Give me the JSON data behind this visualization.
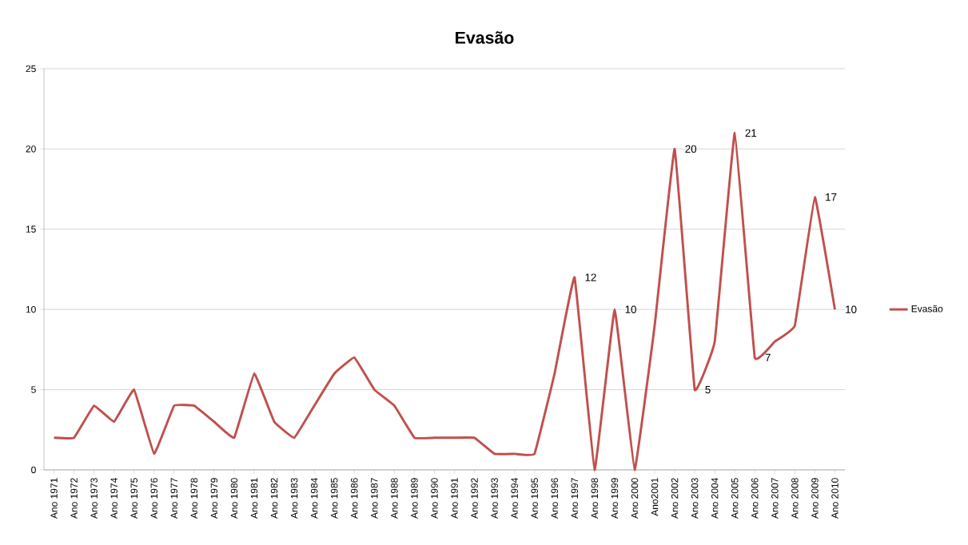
{
  "chart_data": {
    "type": "line",
    "title": "Evasão",
    "categories": [
      "Ano 1971",
      "Ano 1972",
      "Ano 1973",
      "Ano 1974",
      "Ano 1975",
      "Ano 1976",
      "Ano 1977",
      "Ano 1978",
      "Ano 1979",
      "Ano 1980",
      "Ano 1981",
      "Ano 1982",
      "Ano 1983",
      "Ano 1984",
      "Ano 1985",
      "Ano 1986",
      "Ano 1987",
      "Ano 1988",
      "Ano 1989",
      "Ano 1990",
      "Ano 1991",
      "Ano 1992",
      "Ano 1993",
      "Ano 1994",
      "Ano 1995",
      "Ano 1996",
      "Ano 1997",
      "Ano 1998",
      "Ano 1999",
      "Ano 2000",
      "Ano2001",
      "Ano 2002",
      "Ano 2003",
      "Ano 2004",
      "Ano 2005",
      "Ano 2006",
      "Ano 2007",
      "Ano 2008",
      "Ano 2009",
      "Ano 2010"
    ],
    "series": [
      {
        "name": "Evasão",
        "color": "#c0504d",
        "values": [
          2,
          2,
          4,
          3,
          5,
          1,
          4,
          4,
          3,
          2,
          6,
          3,
          2,
          4,
          6,
          7,
          5,
          4,
          2,
          2,
          2,
          2,
          1,
          1,
          1,
          6,
          12,
          0,
          10,
          0,
          9,
          20,
          5,
          8,
          21,
          7,
          8,
          9,
          17,
          10
        ],
        "value_labels": [
          null,
          null,
          null,
          null,
          null,
          null,
          null,
          null,
          null,
          null,
          null,
          null,
          null,
          null,
          null,
          null,
          null,
          null,
          null,
          null,
          null,
          null,
          null,
          null,
          null,
          null,
          "12",
          null,
          "10",
          null,
          null,
          "20",
          "5",
          null,
          "21",
          "7",
          null,
          null,
          "17",
          "10"
        ]
      }
    ],
    "ylim": [
      0,
      25
    ],
    "yticks": [
      0,
      5,
      10,
      15,
      20,
      25
    ],
    "grid": "y",
    "legend": "right",
    "marker": "none",
    "line_style": "solid"
  }
}
